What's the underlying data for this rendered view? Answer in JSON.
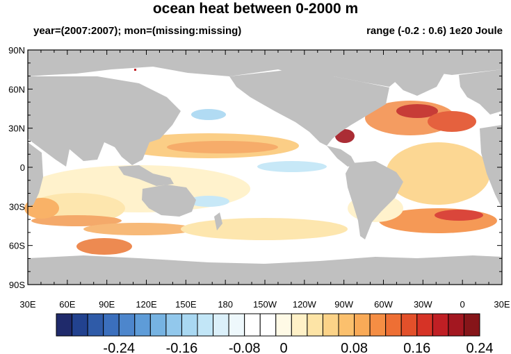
{
  "title": "ocean heat between 0-2000 m",
  "subtitle_left": "year=(2007:2007); mon=(missing:missing)",
  "subtitle_right": "range (-0.2 : 0.6) 1e20 Joule",
  "lat_labels": [
    "90N",
    "60N",
    "30N",
    "0",
    "30S",
    "60S",
    "90S"
  ],
  "lon_labels": [
    "30E",
    "60E",
    "90E",
    "120E",
    "150E",
    "180",
    "150W",
    "120W",
    "90W",
    "60W",
    "30W",
    "0",
    "30E"
  ],
  "colorbar": {
    "labels": [
      "-0.24",
      "-0.16",
      "-0.08",
      "0",
      "0.08",
      "0.16",
      "0.24"
    ],
    "colors": [
      "#1f2a6b",
      "#22428f",
      "#2f5ba8",
      "#3b6fbd",
      "#4d86cc",
      "#5e9cd8",
      "#76b3e2",
      "#92c8ec",
      "#a9d8f2",
      "#c2e6f7",
      "#dbf0fa",
      "#eef8fc",
      "#ffffff",
      "#ffffff",
      "#fffae6",
      "#fff1c7",
      "#fde4a6",
      "#fcd388",
      "#fbc06d",
      "#f9aa57",
      "#f58e44",
      "#ee6f34",
      "#e3502a",
      "#d63326",
      "#c01f24",
      "#a31720",
      "#861519"
    ]
  },
  "land_color": "#c0c0c0"
}
